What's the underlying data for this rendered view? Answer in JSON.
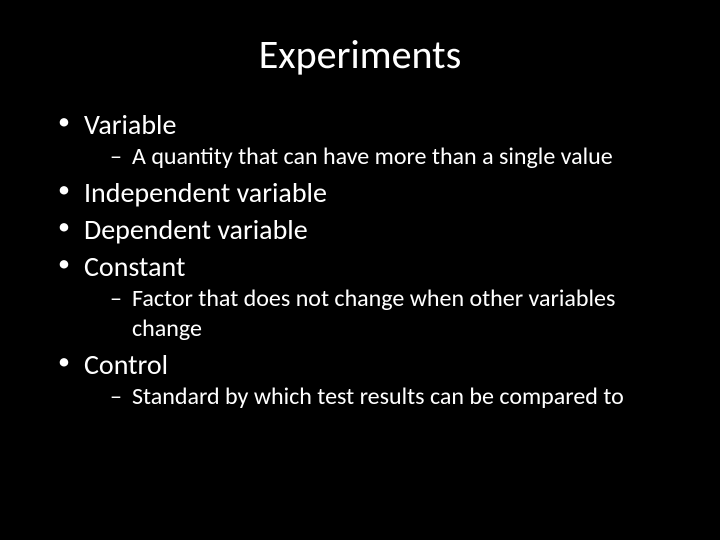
{
  "background_color": "#000000",
  "text_color": "#ffffff",
  "title": "Experiments",
  "title_fontsize": 40,
  "bullet_fontsize": 28,
  "subbullet_fontsize": 24,
  "font_family": "Calibri",
  "items": [
    {
      "label": "Variable",
      "sub": [
        "A quantity that can have more than a single value"
      ]
    },
    {
      "label": "Independent variable",
      "sub": []
    },
    {
      "label": "Dependent variable",
      "sub": []
    },
    {
      "label": "Constant",
      "sub": [
        "Factor that does not change when other variables change"
      ]
    },
    {
      "label": "Control",
      "sub": [
        "Standard by which test results can be compared to"
      ]
    }
  ]
}
